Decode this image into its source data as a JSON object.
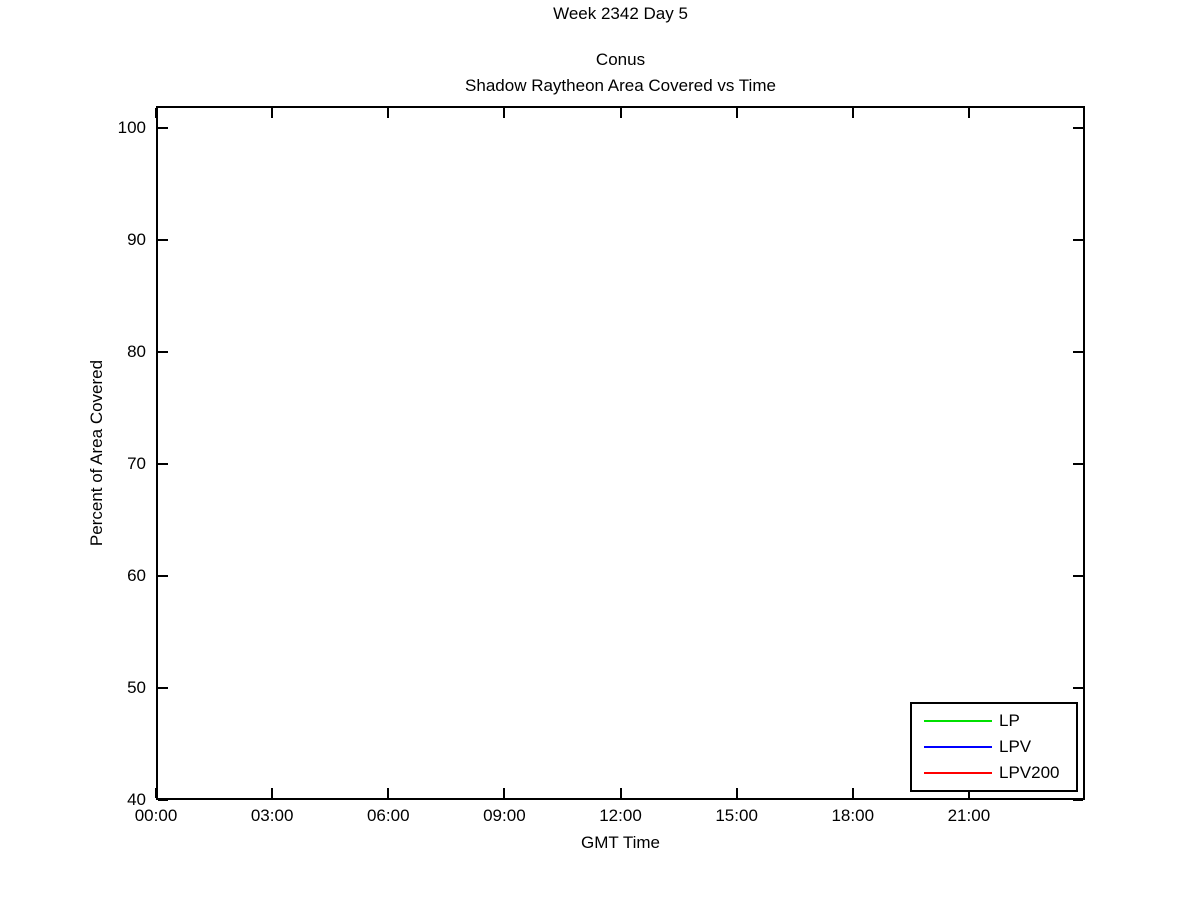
{
  "titles": {
    "suptitle": "Week 2342 Day 5",
    "title_line1": "Conus",
    "title_line2": "Shadow Raytheon Area Covered vs Time"
  },
  "chart_data": {
    "type": "line",
    "title": "Conus — Shadow Raytheon Area Covered vs Time",
    "suptitle": "Week 2342 Day 5",
    "xlabel": "GMT Time",
    "ylabel": "Percent of Area Covered",
    "xlim_hours": [
      0,
      24
    ],
    "ylim": [
      40,
      102
    ],
    "x_ticks": [
      {
        "hour": 0,
        "label": "00:00"
      },
      {
        "hour": 3,
        "label": "03:00"
      },
      {
        "hour": 6,
        "label": "06:00"
      },
      {
        "hour": 9,
        "label": "09:00"
      },
      {
        "hour": 12,
        "label": "12:00"
      },
      {
        "hour": 15,
        "label": "15:00"
      },
      {
        "hour": 18,
        "label": "18:00"
      },
      {
        "hour": 21,
        "label": "21:00"
      }
    ],
    "y_ticks": [
      40,
      50,
      60,
      70,
      80,
      90,
      100
    ],
    "grid": false,
    "plot_background": "#ffffff",
    "axis_color": "#000000",
    "legend_position": "bottom-right",
    "series": [
      {
        "name": "LP",
        "color": "#00e000",
        "values": []
      },
      {
        "name": "LPV",
        "color": "#0000ff",
        "values": []
      },
      {
        "name": "LPV200",
        "color": "#ff0000",
        "values": []
      }
    ]
  }
}
